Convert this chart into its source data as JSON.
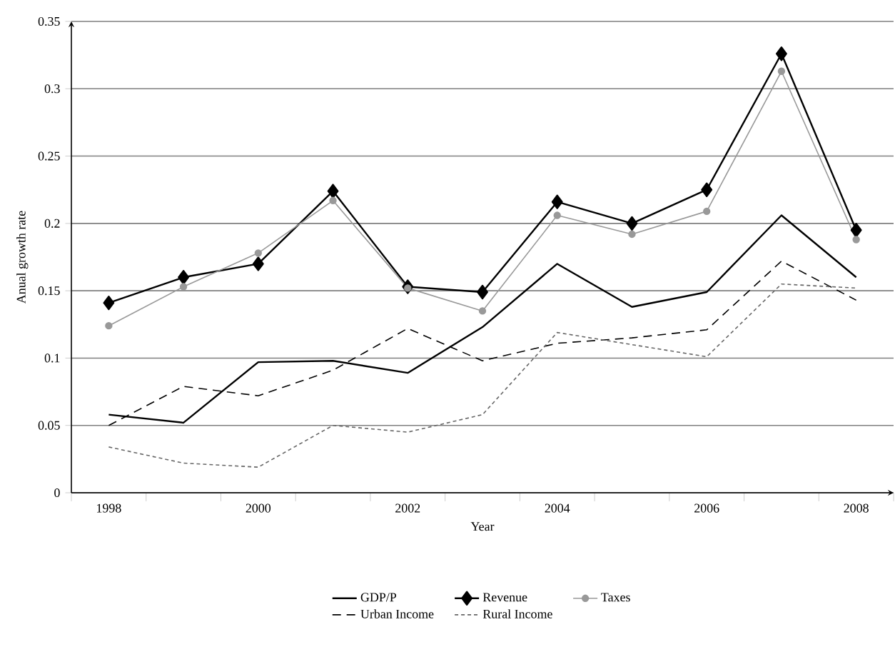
{
  "chart_data": {
    "type": "line",
    "xlabel": "Year",
    "ylabel": "Anual growth rate",
    "categories": [
      "1998",
      null,
      "2000",
      null,
      "2002",
      null,
      "2004",
      null,
      "2006",
      null,
      "2008"
    ],
    "ylim": [
      0,
      0.35
    ],
    "yticks": [
      0,
      0.05,
      0.1,
      0.15,
      0.2,
      0.25,
      0.3,
      0.35
    ],
    "grid": "y",
    "legend": "bottom",
    "series": [
      {
        "name": "GDP/P",
        "color": "#000000",
        "marker": "none",
        "line_style": "solid",
        "values": [
          0.058,
          0.052,
          0.097,
          0.098,
          0.089,
          0.123,
          0.17,
          0.138,
          0.149,
          0.206,
          0.16
        ]
      },
      {
        "name": "Revenue",
        "color": "#000000",
        "marker": "diamond",
        "line_style": "solid",
        "values": [
          0.141,
          0.16,
          0.17,
          0.224,
          0.153,
          0.149,
          0.216,
          0.2,
          0.225,
          0.326,
          0.195
        ]
      },
      {
        "name": "Taxes",
        "color": "#999999",
        "marker": "circle",
        "line_style": "solid",
        "values": [
          0.124,
          0.153,
          0.178,
          0.217,
          0.152,
          0.135,
          0.206,
          0.192,
          0.209,
          0.313,
          0.188
        ]
      },
      {
        "name": "Urban Income",
        "color": "#000000",
        "marker": "none",
        "line_style": "dashed",
        "values": [
          0.05,
          0.079,
          0.072,
          0.091,
          0.122,
          0.098,
          0.111,
          0.115,
          0.121,
          0.172,
          0.143
        ]
      },
      {
        "name": "Rural Income",
        "color": "#666666",
        "marker": "none",
        "line_style": "dotted",
        "values": [
          0.034,
          0.022,
          0.019,
          0.05,
          0.045,
          0.058,
          0.119,
          0.11,
          0.101,
          0.155,
          0.152
        ]
      }
    ]
  }
}
